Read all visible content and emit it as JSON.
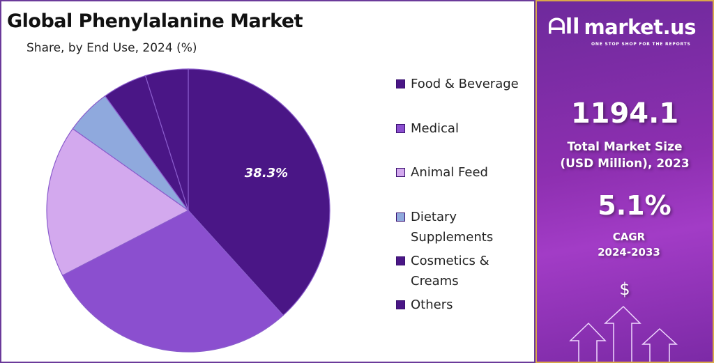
{
  "chart_data": {
    "type": "pie",
    "title": "Global Phenylalanine Market",
    "subtitle": "Share, by End Use, 2024 (%)",
    "start_angle": "top, clockwise",
    "categories": [
      "Food & Beverage",
      "Medical",
      "Animal Feed",
      "Dietary Supplements",
      "Cosmetics & Creams",
      "Others"
    ],
    "values": [
      38.3,
      29.1,
      17.4,
      5.2,
      5.1,
      4.9
    ],
    "colors": [
      "#4a1686",
      "#8b4fcf",
      "#d3a9ee",
      "#8fa9dd",
      "#4a1686",
      "#4a1686"
    ],
    "data_labels": {
      "Food & Beverage": "38.3%"
    },
    "legend_position": "right",
    "legend_labels": [
      [
        "Food & Beverage"
      ],
      [
        "Medical"
      ],
      [
        "Animal Feed"
      ],
      [
        "Dietary",
        "Supplements"
      ],
      [
        "Cosmetics &",
        "Creams"
      ],
      [
        "Others"
      ]
    ]
  },
  "panel": {
    "brand": "market.us",
    "tagline": "ONE STOP SHOP FOR THE REPORTS",
    "market_size": "1194.1",
    "market_size_label_1": "Total Market Size",
    "market_size_label_2": "(USD Million), 2023",
    "cagr": "5.1%",
    "cagr_label": "CAGR",
    "cagr_period": "2024-2033",
    "dollar": "$"
  }
}
